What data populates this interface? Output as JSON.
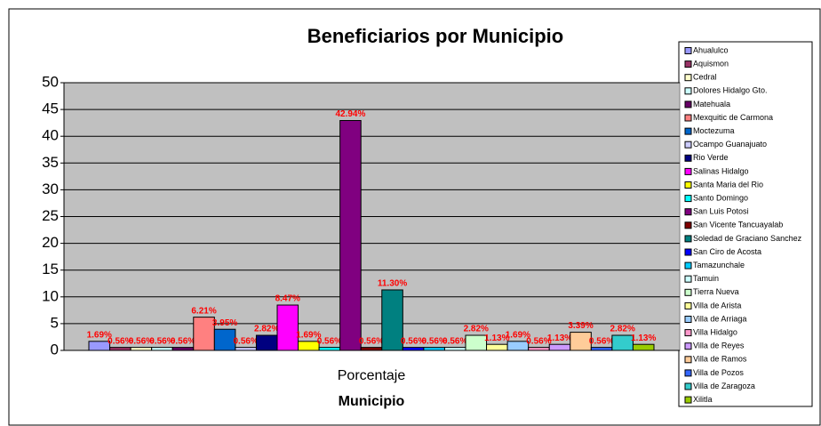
{
  "chart_data": {
    "type": "bar",
    "title": "Beneficiarios por Municipio",
    "categories": [
      "Porcentaje"
    ],
    "x_label": "Municipio",
    "ylim": [
      0,
      50
    ],
    "yticks": [
      0,
      5,
      10,
      15,
      20,
      25,
      30,
      35,
      40,
      45,
      50
    ],
    "grid": true,
    "legend": "right",
    "series": [
      {
        "name": "Ahualulco",
        "color": "#9999FF",
        "values": [
          1.69
        ],
        "value_labels": [
          "1.69%"
        ]
      },
      {
        "name": "Aquismon",
        "color": "#993366",
        "values": [
          0.56
        ],
        "value_labels": [
          "0.56%"
        ]
      },
      {
        "name": "Cedral",
        "color": "#FFFFCC",
        "values": [
          0.56
        ],
        "value_labels": [
          "0.56%"
        ]
      },
      {
        "name": "Dolores Hidalgo Gto.",
        "color": "#CCFFFF",
        "values": [
          0.56
        ],
        "value_labels": [
          "0.56%"
        ]
      },
      {
        "name": "Matehuala",
        "color": "#660066",
        "values": [
          0.56
        ],
        "value_labels": [
          "0.56%"
        ]
      },
      {
        "name": "Mexquitic de Carmona",
        "color": "#FF8080",
        "values": [
          6.21
        ],
        "value_labels": [
          "6.21%"
        ]
      },
      {
        "name": "Moctezuma",
        "color": "#0066CC",
        "values": [
          3.95
        ],
        "value_labels": [
          "3.95%"
        ]
      },
      {
        "name": "Ocampo Guanajuato",
        "color": "#CCCCFF",
        "values": [
          0.56
        ],
        "value_labels": [
          "0.56%"
        ]
      },
      {
        "name": "Rio Verde",
        "color": "#000080",
        "values": [
          2.82
        ],
        "value_labels": [
          "2.82%"
        ]
      },
      {
        "name": "Salinas Hidalgo",
        "color": "#FF00FF",
        "values": [
          8.47
        ],
        "value_labels": [
          "8.47%"
        ]
      },
      {
        "name": "Santa Maria del Rio",
        "color": "#FFFF00",
        "values": [
          1.69
        ],
        "value_labels": [
          "1.69%"
        ]
      },
      {
        "name": "Santo Domingo",
        "color": "#00FFFF",
        "values": [
          0.56
        ],
        "value_labels": [
          "0.56%"
        ]
      },
      {
        "name": "San Luis Potosi",
        "color": "#800080",
        "values": [
          42.94
        ],
        "value_labels": [
          "42.94%"
        ]
      },
      {
        "name": "San Vicente Tancuayalab",
        "color": "#800000",
        "values": [
          0.56
        ],
        "value_labels": [
          "0.56%"
        ]
      },
      {
        "name": "Soledad de Graciano Sanchez",
        "color": "#008080",
        "values": [
          11.3
        ],
        "value_labels": [
          "11.30%"
        ]
      },
      {
        "name": "San Ciro de Acosta",
        "color": "#0000FF",
        "values": [
          0.56
        ],
        "value_labels": [
          "0.56%"
        ]
      },
      {
        "name": "Tamazunchale",
        "color": "#00CCFF",
        "values": [
          0.56
        ],
        "value_labels": [
          "0.56%"
        ]
      },
      {
        "name": "Tamuin",
        "color": "#CCFFFF",
        "values": [
          0.56
        ],
        "value_labels": [
          "0.56%"
        ]
      },
      {
        "name": "Tierra Nueva",
        "color": "#CCFFCC",
        "values": [
          2.82
        ],
        "value_labels": [
          "2.82%"
        ]
      },
      {
        "name": "Villa de Arista",
        "color": "#FFFF99",
        "values": [
          1.13
        ],
        "value_labels": [
          "1.13%"
        ]
      },
      {
        "name": "Villa de Arriaga",
        "color": "#99CCFF",
        "values": [
          1.69
        ],
        "value_labels": [
          "1.69%"
        ]
      },
      {
        "name": "Villa Hidalgo",
        "color": "#FF99CC",
        "values": [
          0.56
        ],
        "value_labels": [
          "0.56%"
        ]
      },
      {
        "name": "Villa de Reyes",
        "color": "#CC99FF",
        "values": [
          1.13
        ],
        "value_labels": [
          "1.13%"
        ]
      },
      {
        "name": "Villa de Ramos",
        "color": "#FFCC99",
        "values": [
          3.39
        ],
        "value_labels": [
          "3.39%"
        ]
      },
      {
        "name": "Villa de Pozos",
        "color": "#3366FF",
        "values": [
          0.56
        ],
        "value_labels": [
          "0.56%"
        ]
      },
      {
        "name": "Villa de Zaragoza",
        "color": "#33CCCC",
        "values": [
          2.82
        ],
        "value_labels": [
          "2.82%"
        ]
      },
      {
        "name": "Xilitla",
        "color": "#99CC00",
        "values": [
          1.13
        ],
        "value_labels": [
          "1.13%"
        ]
      }
    ]
  }
}
